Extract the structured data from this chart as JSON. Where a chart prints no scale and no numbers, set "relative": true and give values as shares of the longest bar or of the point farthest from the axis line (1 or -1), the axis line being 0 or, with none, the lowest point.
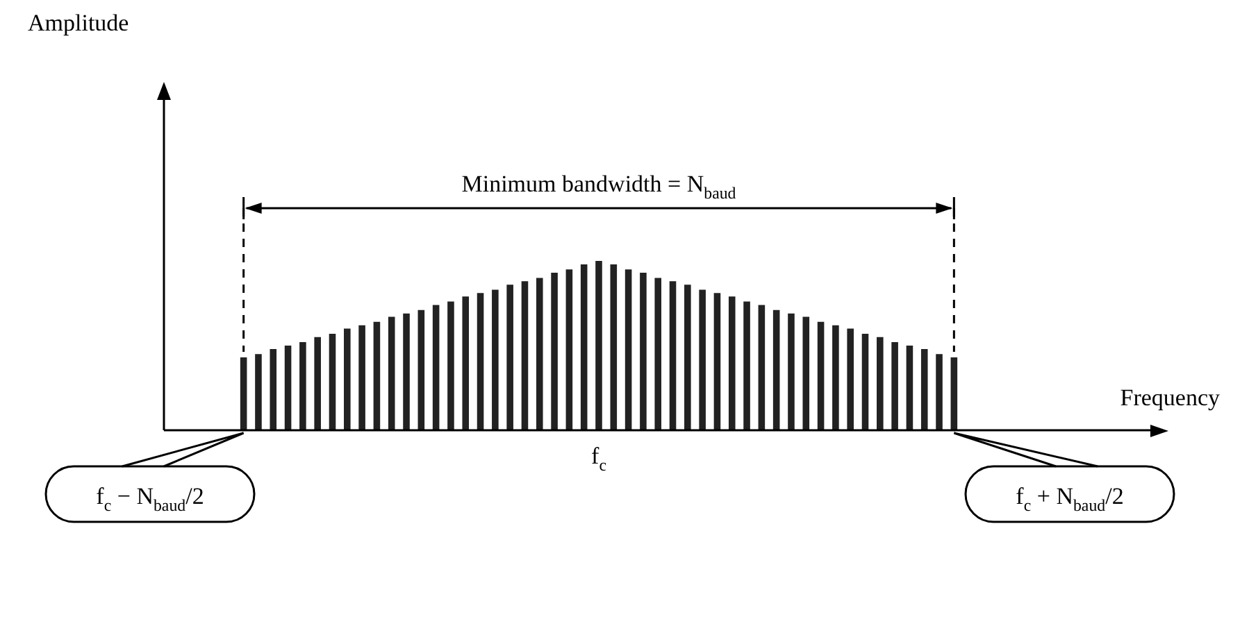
{
  "chart_data": {
    "type": "bar",
    "relative": true,
    "color": "#222222",
    "categories": [
      null,
      null,
      null,
      null,
      null,
      null,
      null,
      null,
      null,
      null,
      null,
      null,
      null,
      null,
      null,
      null,
      null,
      null,
      null,
      null,
      null,
      null,
      null,
      null,
      "f$_{c}$",
      null,
      null,
      null,
      null,
      null,
      null,
      null,
      null,
      null,
      null,
      null,
      null,
      null,
      null,
      null,
      null,
      null,
      null,
      null,
      null,
      null,
      null,
      null,
      null
    ],
    "values": [
      0.43,
      0.45,
      0.48,
      0.5,
      0.52,
      0.55,
      0.57,
      0.6,
      0.62,
      0.64,
      0.67,
      0.69,
      0.71,
      0.74,
      0.76,
      0.79,
      0.81,
      0.83,
      0.86,
      0.88,
      0.9,
      0.93,
      0.95,
      0.98,
      1,
      0.98,
      0.95,
      0.93,
      0.9,
      0.88,
      0.86,
      0.83,
      0.81,
      0.79,
      0.76,
      0.74,
      0.71,
      0.69,
      0.67,
      0.64,
      0.62,
      0.6,
      0.57,
      0.55,
      0.52,
      0.5,
      0.48,
      0.45,
      0.43
    ],
    "annotations": [
      "Minimum bandwidth = N$_{baud}$",
      "f$_{c}$ − N$_{baud}$/2",
      "f$_{c}$ + N$_{baud}$/2",
      "Amplitude",
      "Frequency"
    ]
  }
}
